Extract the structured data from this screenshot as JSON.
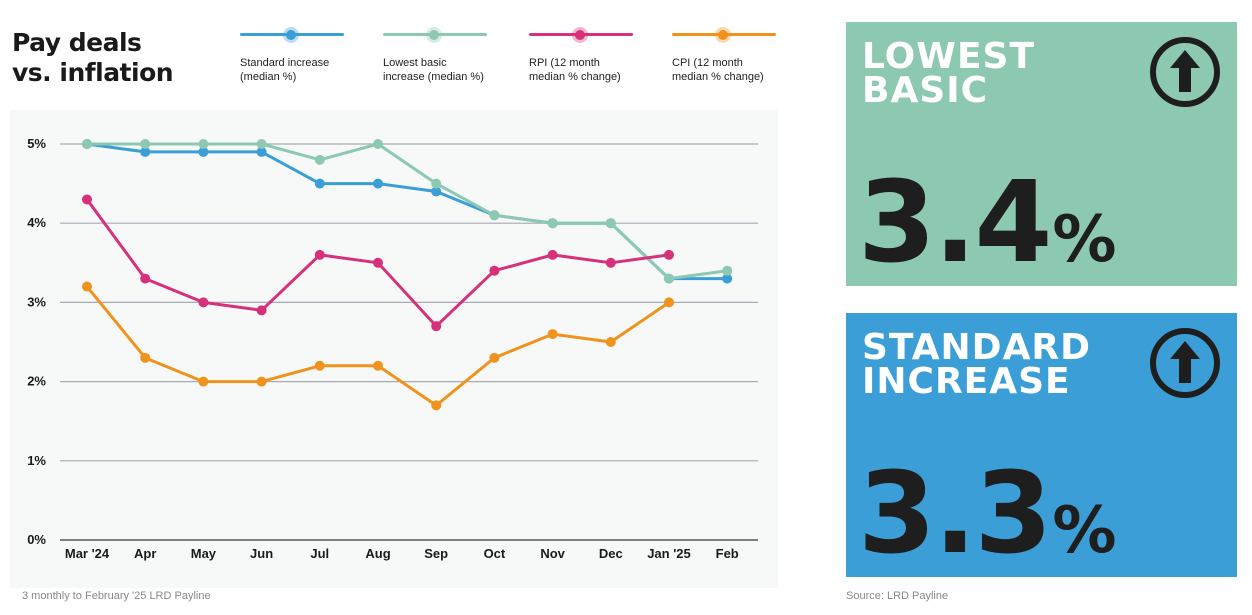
{
  "title_lines": [
    "Pay deals",
    "vs. inflation"
  ],
  "legend": [
    {
      "label": "Standard increase\n(median %)",
      "color": "#3b9ed6"
    },
    {
      "label": "Lowest basic\nincrease (median %)",
      "color": "#8dc8b1"
    },
    {
      "label": "RPI (12 month\nmedian % change)",
      "color": "#d6317a"
    },
    {
      "label": "CPI (12 month\nmedian % change)",
      "color": "#f0931e"
    }
  ],
  "footnote": "3 monthly to February '25 LRD Payline",
  "source": "Source: LRD Payline",
  "cards": [
    {
      "heading": "LOWEST\nBASIC",
      "value": "3.4",
      "unit": "%",
      "color": "#8dc8b1",
      "icon": "arrow-up-circle-icon"
    },
    {
      "heading": "STANDARD\nINCREASE",
      "value": "3.3",
      "unit": "%",
      "color": "#3b9ed6",
      "icon": "arrow-up-circle-icon"
    }
  ],
  "chart_data": {
    "type": "line",
    "categories": [
      "Mar '24",
      "Apr",
      "May",
      "Jun",
      "Jul",
      "Aug",
      "Sep",
      "Oct",
      "Nov",
      "Dec",
      "Jan '25",
      "Feb"
    ],
    "ylim": [
      0,
      5
    ],
    "yticks": [
      0,
      1,
      2,
      3,
      4,
      5
    ],
    "ytick_labels": [
      "0%",
      "1%",
      "2%",
      "3%",
      "4%",
      "5%"
    ],
    "grid": true,
    "series": [
      {
        "name": "Standard increase (median %)",
        "color": "#3b9ed6",
        "values": [
          5.0,
          4.9,
          4.9,
          4.9,
          4.5,
          4.5,
          4.4,
          4.1,
          4.0,
          4.0,
          3.3,
          3.3
        ]
      },
      {
        "name": "Lowest basic increase (median %)",
        "color": "#8dc8b1",
        "values": [
          5.0,
          5.0,
          5.0,
          5.0,
          4.8,
          5.0,
          4.5,
          4.1,
          4.0,
          4.0,
          3.3,
          3.4
        ]
      },
      {
        "name": "RPI (12 month median % change)",
        "color": "#d6317a",
        "values": [
          4.3,
          3.3,
          3.0,
          2.9,
          3.6,
          3.5,
          2.7,
          3.4,
          3.6,
          3.5,
          3.6,
          null
        ]
      },
      {
        "name": "CPI (12 month median % change)",
        "color": "#f0931e",
        "values": [
          3.2,
          2.3,
          2.0,
          2.0,
          2.2,
          2.2,
          1.7,
          2.3,
          2.6,
          2.5,
          3.0,
          null
        ]
      }
    ]
  }
}
